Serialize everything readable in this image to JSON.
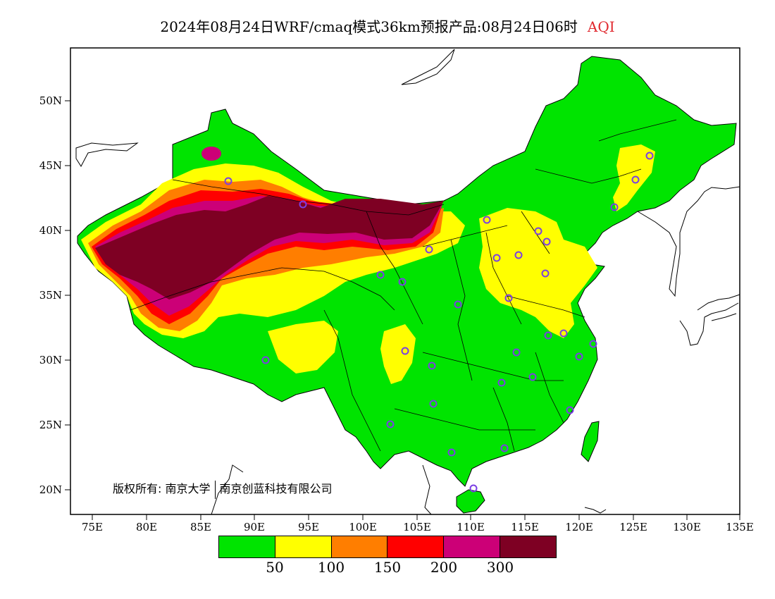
{
  "title": {
    "main": "2024年08月24日WRF/cmaq模式36km预报产品:08月24日06时",
    "variable": "AQI"
  },
  "axes": {
    "lat_labels": [
      "50N",
      "45N",
      "40N",
      "35N",
      "30N",
      "25N",
      "20N"
    ],
    "lon_labels": [
      "75E",
      "80E",
      "85E",
      "90E",
      "95E",
      "100E",
      "105E",
      "110E",
      "115E",
      "120E",
      "125E",
      "130E",
      "135E"
    ]
  },
  "copyright": {
    "label": "版权所有:",
    "org1": "南京大学",
    "org2": "南京创蓝科技有限公司"
  },
  "legend": {
    "colors": [
      "#00e400",
      "#ffff00",
      "#ff7e00",
      "#ff0000",
      "#cc0077",
      "#7e0023"
    ],
    "labels": [
      "50",
      "100",
      "150",
      "200",
      "300"
    ]
  },
  "colors": {
    "good": "#00e400",
    "moderate": "#ffff00",
    "usg": "#ff7e00",
    "unhealthy": "#ff0000",
    "very_unhealthy": "#cc0077",
    "hazardous": "#7e0023",
    "station_marker": "#7b3fe4"
  }
}
